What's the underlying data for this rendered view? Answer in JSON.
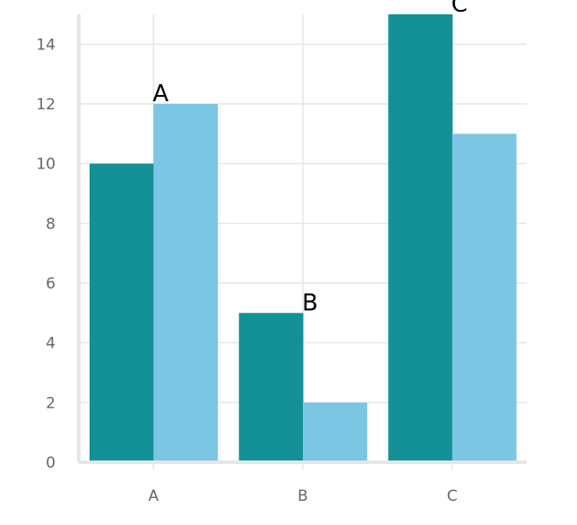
{
  "chart_data": {
    "type": "bar",
    "title": "",
    "xlabel": "",
    "ylabel": "",
    "categories": [
      "A",
      "B",
      "C"
    ],
    "series": [
      {
        "values": [
          10,
          5,
          15
        ],
        "color": "#139196"
      },
      {
        "values": [
          12,
          2,
          11
        ],
        "color": "#7bc6e2"
      }
    ],
    "ylim": [
      0,
      15
    ],
    "yticks": [
      0,
      2,
      4,
      6,
      8,
      10,
      12,
      14
    ],
    "grid": true,
    "legend": "none",
    "annotations": [
      {
        "text": "A",
        "category": "A",
        "y": 12
      },
      {
        "text": "B",
        "category": "B",
        "y": 5
      },
      {
        "text": "C",
        "category": "C",
        "y": 15
      }
    ],
    "colors": {
      "grid": "#e6e6e6",
      "axis": "#e6e6e6",
      "tick_text": "#666666"
    }
  }
}
